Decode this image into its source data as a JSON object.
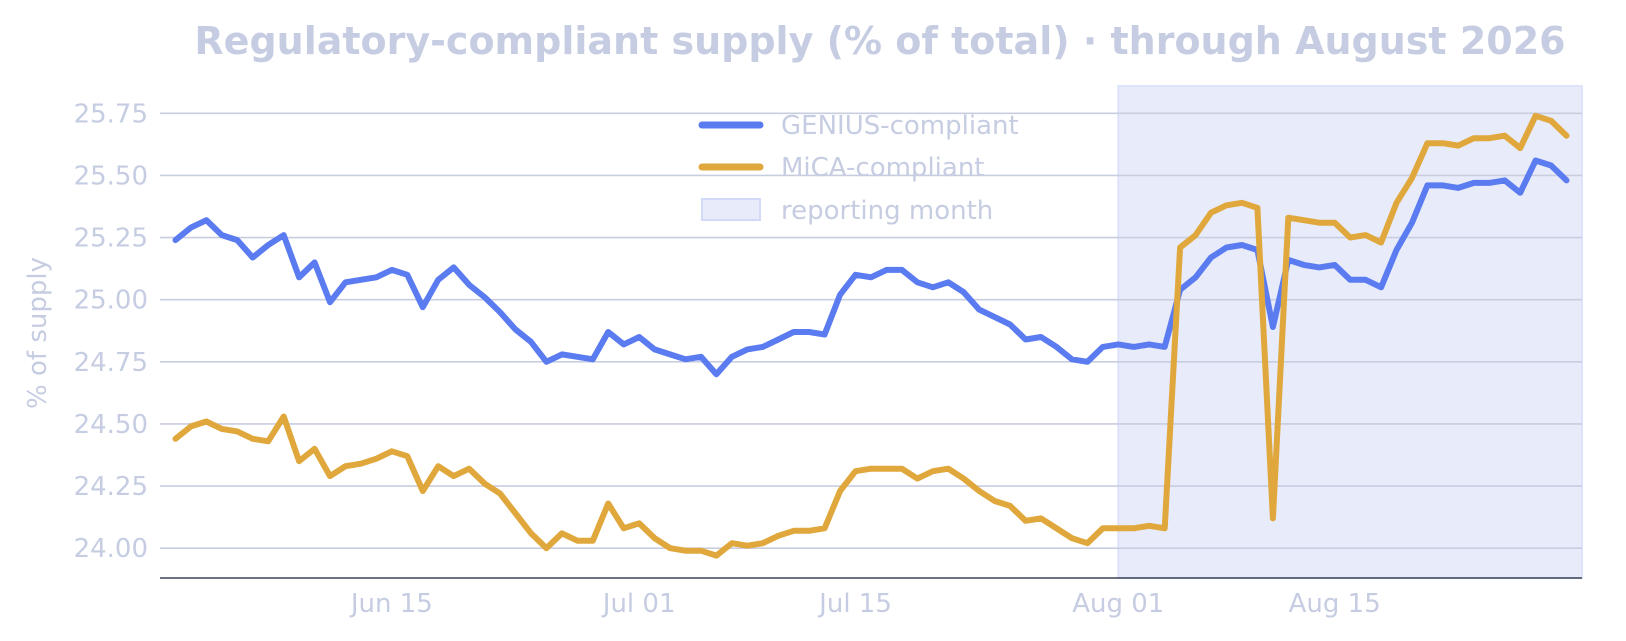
{
  "chart_data": {
    "type": "line",
    "title": "Regulatory-compliant supply (% of total) · through August 2026",
    "xlabel": "",
    "ylabel": "% of supply",
    "x_start": "2026-06-01",
    "x_end": "2026-08-30",
    "xlim": [
      "2026-05-31",
      "2026-08-31"
    ],
    "ylim": [
      23.88,
      25.86
    ],
    "yticks": [
      24.0,
      24.25,
      24.5,
      24.75,
      25.0,
      25.25,
      25.5,
      25.75
    ],
    "ytick_labels": [
      "24.00",
      "24.25",
      "24.50",
      "24.75",
      "25.00",
      "25.25",
      "25.50",
      "25.75"
    ],
    "xticks": [
      "2026-06-15",
      "2026-07-01",
      "2026-07-15",
      "2026-08-01",
      "2026-08-15"
    ],
    "xtick_labels": [
      "Jun 15",
      "Jul 01",
      "Jul 15",
      "Aug 01",
      "Aug 15"
    ],
    "grid": "horizontal",
    "legend_position": "top-center",
    "highlight": {
      "label": "reporting month",
      "from": "2026-08-01",
      "to": "2026-08-31",
      "color": "#e8ebfa"
    },
    "series": [
      {
        "name": "GENIUS-compliant",
        "color": "#5b7cf0",
        "values": [
          25.24,
          25.29,
          25.32,
          25.26,
          25.24,
          25.17,
          25.22,
          25.26,
          25.09,
          25.15,
          24.99,
          25.07,
          25.08,
          25.09,
          25.12,
          25.1,
          24.97,
          25.08,
          25.13,
          25.06,
          25.01,
          24.95,
          24.88,
          24.83,
          24.75,
          24.78,
          24.77,
          24.76,
          24.87,
          24.82,
          24.85,
          24.8,
          24.78,
          24.76,
          24.77,
          24.7,
          24.77,
          24.8,
          24.81,
          24.84,
          24.87,
          24.87,
          24.86,
          25.02,
          25.1,
          25.09,
          25.12,
          25.12,
          25.07,
          25.05,
          25.07,
          25.03,
          24.96,
          24.93,
          24.9,
          24.84,
          24.85,
          24.81,
          24.76,
          24.75,
          24.81,
          24.82,
          24.81,
          24.82,
          24.81,
          25.04,
          25.09,
          25.17,
          25.21,
          25.22,
          25.2,
          24.89,
          25.16,
          25.14,
          25.13,
          25.14,
          25.08,
          25.08,
          25.05,
          25.2,
          25.31,
          25.46,
          25.46,
          25.45,
          25.47,
          25.47,
          25.48,
          25.43,
          25.56,
          25.54,
          25.48
        ]
      },
      {
        "name": "MiCA-compliant",
        "color": "#e0a83c",
        "values": [
          24.44,
          24.49,
          24.51,
          24.48,
          24.47,
          24.44,
          24.43,
          24.53,
          24.35,
          24.4,
          24.29,
          24.33,
          24.34,
          24.36,
          24.39,
          24.37,
          24.23,
          24.33,
          24.29,
          24.32,
          24.26,
          24.22,
          24.14,
          24.06,
          24.0,
          24.06,
          24.03,
          24.03,
          24.18,
          24.08,
          24.1,
          24.04,
          24.0,
          23.99,
          23.99,
          23.97,
          24.02,
          24.01,
          24.02,
          24.05,
          24.07,
          24.07,
          24.08,
          24.23,
          24.31,
          24.32,
          24.32,
          24.32,
          24.28,
          24.31,
          24.32,
          24.28,
          24.23,
          24.19,
          24.17,
          24.11,
          24.12,
          24.08,
          24.04,
          24.02,
          24.08,
          24.08,
          24.08,
          24.09,
          24.08,
          25.21,
          25.26,
          25.35,
          25.38,
          25.39,
          25.37,
          24.12,
          25.33,
          25.32,
          25.31,
          25.31,
          25.25,
          25.26,
          25.23,
          25.39,
          25.49,
          25.63,
          25.63,
          25.62,
          25.65,
          25.65,
          25.66,
          25.61,
          25.74,
          25.72,
          25.66
        ]
      }
    ]
  }
}
